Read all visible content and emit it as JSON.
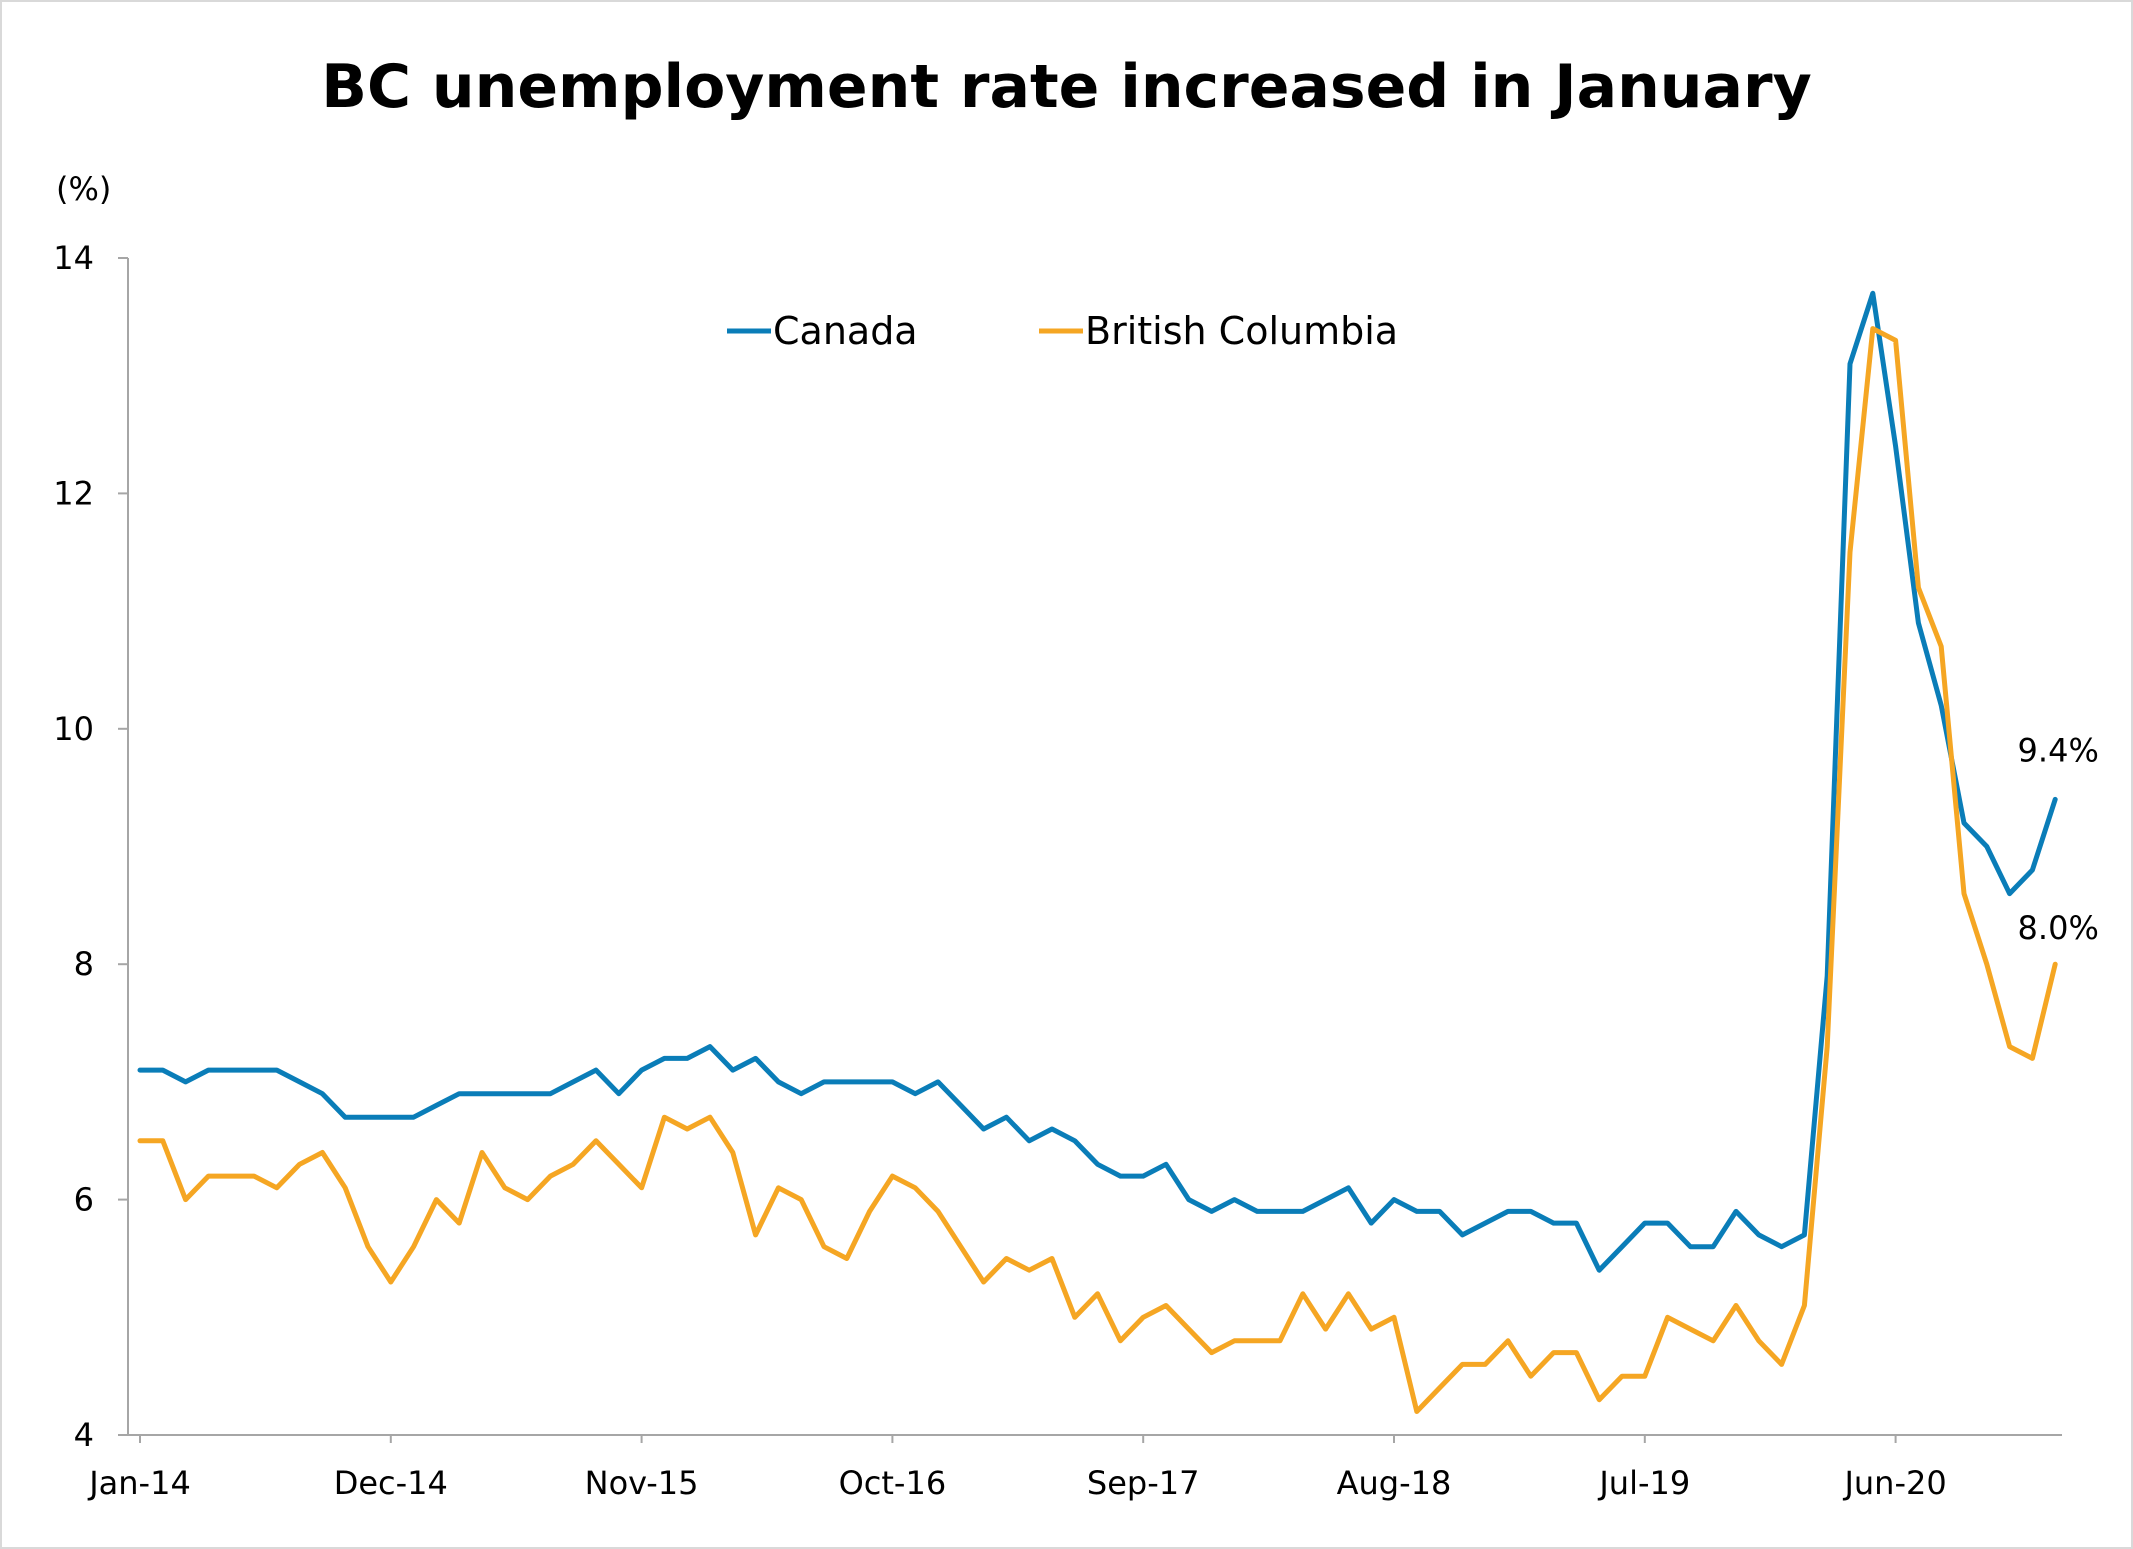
{
  "chart_data": {
    "type": "line",
    "title": "BC unemployment rate increased in January",
    "ylabel": "(%)",
    "xlabel": "",
    "ylim": [
      4,
      14
    ],
    "yticks": [
      4,
      6,
      8,
      10,
      12,
      14
    ],
    "xtick_labels": [
      "Jan-14",
      "Dec-14",
      "Nov-15",
      "Oct-16",
      "Sep-17",
      "Aug-18",
      "Jul-19",
      "Jun-20"
    ],
    "xtick_interval_months": 11,
    "grid": false,
    "legend": {
      "placement": "top-center"
    },
    "x_start": "2014-01",
    "x_end": "2021-01",
    "series": [
      {
        "name": "Canada",
        "color": "#0a7db8",
        "end_label": "9.4%",
        "values": [
          7.1,
          7.1,
          7.0,
          7.1,
          7.1,
          7.1,
          7.1,
          7.0,
          6.9,
          6.7,
          6.7,
          6.7,
          6.7,
          6.8,
          6.9,
          6.9,
          6.9,
          6.9,
          6.9,
          7.0,
          7.1,
          6.9,
          7.1,
          7.2,
          7.2,
          7.3,
          7.1,
          7.2,
          7.0,
          6.9,
          7.0,
          7.0,
          7.0,
          7.0,
          6.9,
          7.0,
          6.8,
          6.6,
          6.7,
          6.5,
          6.6,
          6.5,
          6.3,
          6.2,
          6.2,
          6.3,
          6.0,
          5.9,
          6.0,
          5.9,
          5.9,
          5.9,
          6.0,
          6.1,
          5.8,
          6.0,
          5.9,
          5.9,
          5.7,
          5.8,
          5.9,
          5.9,
          5.8,
          5.8,
          5.4,
          5.6,
          5.8,
          5.8,
          5.6,
          5.6,
          5.9,
          5.7,
          5.6,
          5.7,
          7.9,
          13.1,
          13.7,
          12.4,
          10.9,
          10.2,
          9.2,
          9.0,
          8.6,
          8.8,
          9.4
        ]
      },
      {
        "name": "British Columbia",
        "color": "#f5a623",
        "end_label": "8.0%",
        "values": [
          6.5,
          6.5,
          6.0,
          6.2,
          6.2,
          6.2,
          6.1,
          6.3,
          6.4,
          6.1,
          5.6,
          5.3,
          5.6,
          6.0,
          5.8,
          6.4,
          6.1,
          6.0,
          6.2,
          6.3,
          6.5,
          6.3,
          6.1,
          6.7,
          6.6,
          6.7,
          6.4,
          5.7,
          6.1,
          6.0,
          5.6,
          5.5,
          5.9,
          6.2,
          6.1,
          5.9,
          5.6,
          5.3,
          5.5,
          5.4,
          5.5,
          5.0,
          5.2,
          4.8,
          5.0,
          5.1,
          4.9,
          4.7,
          4.8,
          4.8,
          4.8,
          5.2,
          4.9,
          5.2,
          4.9,
          5.0,
          4.2,
          4.4,
          4.6,
          4.6,
          4.8,
          4.5,
          4.7,
          4.7,
          4.3,
          4.5,
          4.5,
          5.0,
          4.9,
          4.8,
          5.1,
          4.8,
          4.6,
          5.1,
          7.3,
          11.5,
          13.4,
          13.3,
          11.2,
          10.7,
          8.6,
          8.0,
          7.3,
          7.2,
          8.0
        ]
      }
    ]
  }
}
